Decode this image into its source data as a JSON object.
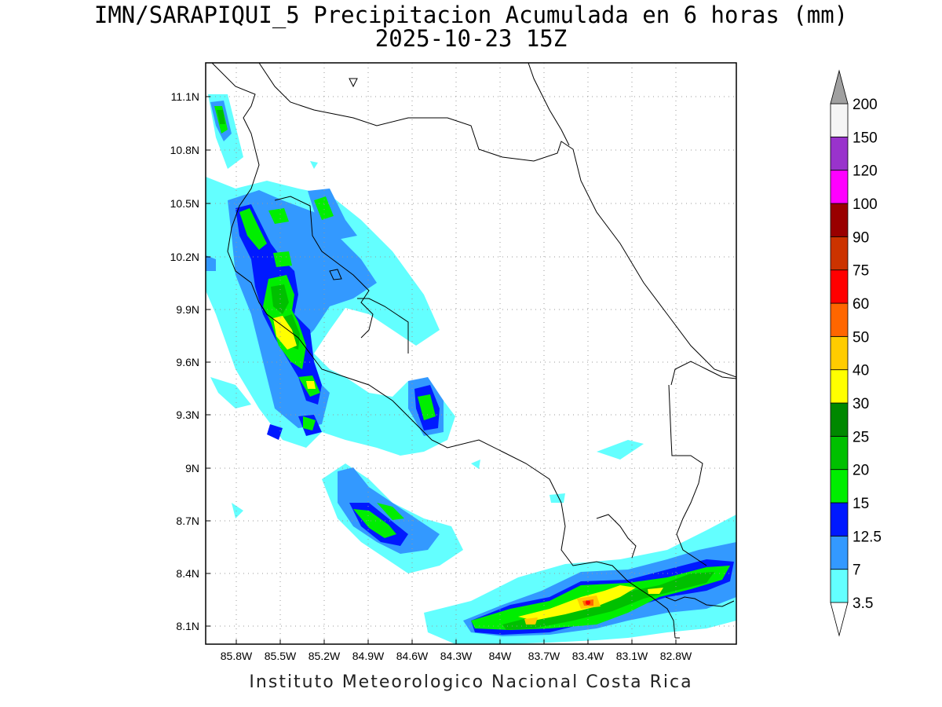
{
  "title": {
    "line1": "IMN/SARAPIQUI_5 Precipitacion Acumulada en 6 horas (mm)",
    "line2": "2025-10-23 15Z"
  },
  "footer": "Instituto Meteorologico Nacional Costa Rica",
  "map": {
    "x_ticks": [
      "85.8W",
      "85.5W",
      "85.2W",
      "84.9W",
      "84.6W",
      "84.3W",
      "84W",
      "83.7W",
      "83.4W",
      "83.1W",
      "82.8W"
    ],
    "y_ticks": [
      "11.1N",
      "10.8N",
      "10.5N",
      "10.2N",
      "9.9N",
      "9.6N",
      "9.3N",
      "9N",
      "8.7N",
      "8.4N",
      "8.1N"
    ],
    "grid": true
  },
  "colorbar": {
    "levels": [
      "3.5",
      "7",
      "12.5",
      "15",
      "20",
      "25",
      "30",
      "40",
      "50",
      "60",
      "75",
      "90",
      "100",
      "120",
      "150",
      "200"
    ],
    "colors": [
      "#63ffff",
      "#3399ff",
      "#0019ff",
      "#00ee00",
      "#00c000",
      "#008800",
      "#ffff00",
      "#ffcc00",
      "#ff6600",
      "#ff0000",
      "#cc3300",
      "#990000",
      "#ff00ff",
      "#9933cc",
      "#f5f5f5",
      "#a0a0a0"
    ]
  }
}
